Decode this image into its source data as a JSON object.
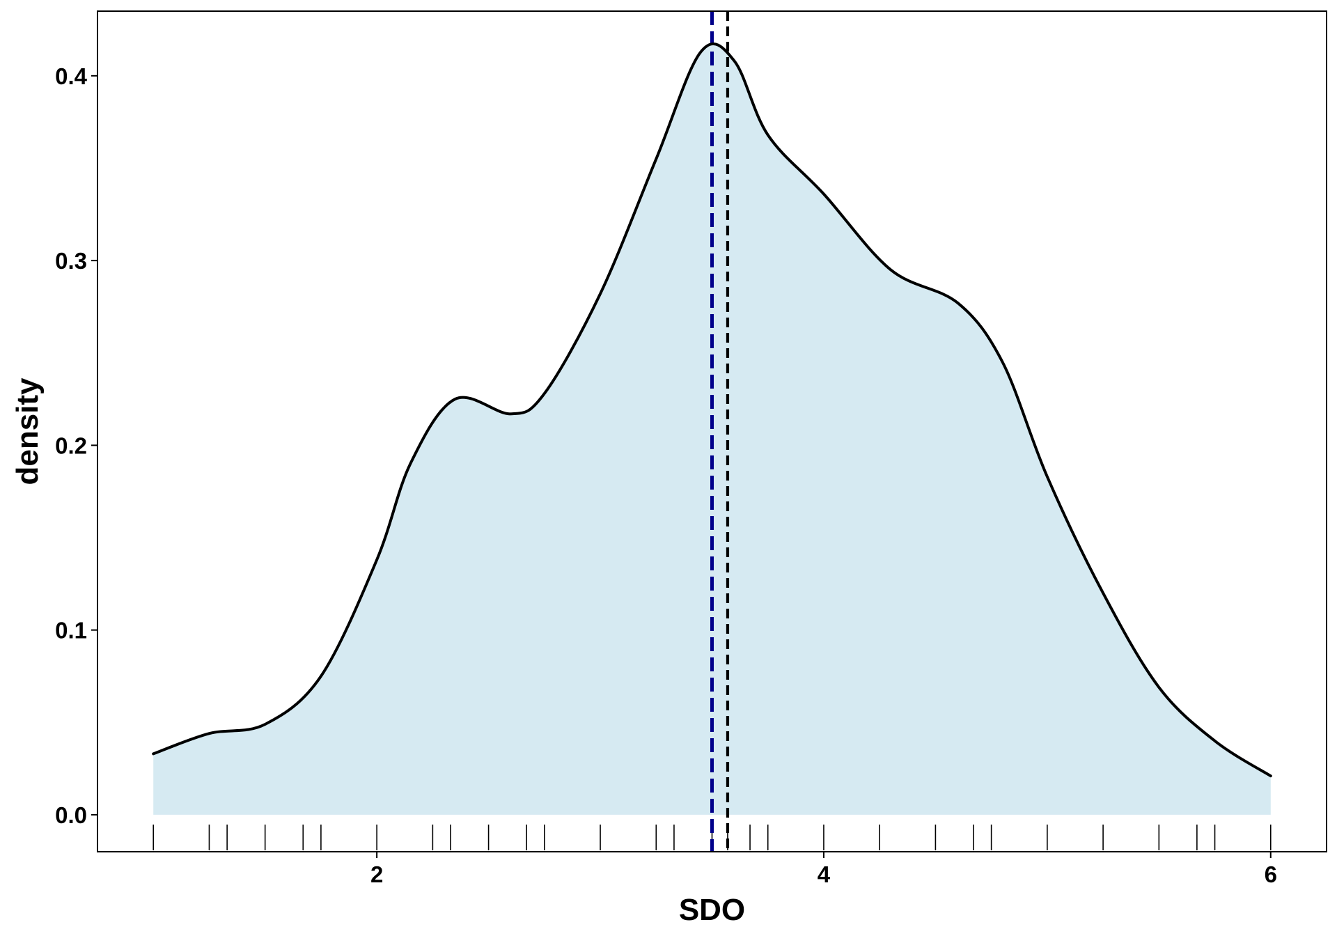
{
  "chart_data": {
    "type": "area",
    "title": "",
    "xlabel": "SDO",
    "ylabel": "density",
    "xlim": [
      0.75,
      6.25
    ],
    "ylim": [
      -0.02,
      0.435
    ],
    "x_ticks": [
      2,
      4,
      6
    ],
    "x_tick_labels": [
      "2",
      "4",
      "6"
    ],
    "y_ticks": [
      0.0,
      0.1,
      0.2,
      0.3,
      0.4
    ],
    "y_tick_labels": [
      "0.0",
      "0.1",
      "0.2",
      "0.3",
      "0.4"
    ],
    "grid": false,
    "legend": "none",
    "colors": {
      "fill": "#d6eaf2",
      "curve": "#000000",
      "mean_line": "#00008b",
      "median_line": "#000000",
      "rug": "#000000",
      "axes": "#000000"
    },
    "density": {
      "x": [
        1.0,
        1.25,
        1.5,
        1.75,
        2.0,
        2.15,
        2.35,
        2.6,
        2.75,
        3.0,
        3.25,
        3.45,
        3.6,
        3.75,
        4.0,
        4.3,
        4.6,
        4.8,
        5.0,
        5.25,
        5.5,
        5.75,
        6.0
      ],
      "y": [
        0.033,
        0.044,
        0.049,
        0.075,
        0.138,
        0.19,
        0.225,
        0.217,
        0.228,
        0.282,
        0.355,
        0.413,
        0.408,
        0.368,
        0.336,
        0.295,
        0.277,
        0.245,
        0.183,
        0.12,
        0.069,
        0.04,
        0.021
      ]
    },
    "reference_lines": [
      {
        "name": "mean",
        "x": 3.5,
        "style": "dashed"
      },
      {
        "name": "median",
        "x": 3.57,
        "style": "dashed"
      }
    ],
    "rug": [
      1.0,
      1.25,
      1.33,
      1.5,
      1.67,
      1.75,
      2.0,
      2.25,
      2.33,
      2.5,
      2.67,
      2.75,
      3.0,
      3.25,
      3.33,
      3.5,
      3.57,
      3.67,
      3.75,
      4.0,
      4.25,
      4.5,
      4.67,
      4.75,
      5.0,
      5.25,
      5.5,
      5.67,
      5.75,
      6.0
    ]
  }
}
